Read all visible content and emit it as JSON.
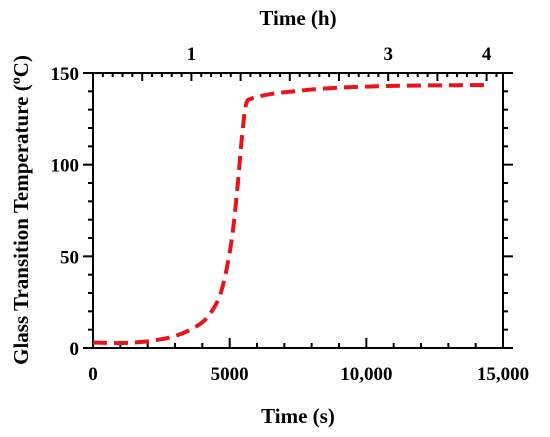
{
  "chart_data": {
    "type": "line",
    "xlabel": "Time (s)",
    "x2label": "Time (h)",
    "ylabel_main": "Glass Transition Temperature (",
    "ylabel_sup": "o",
    "ylabel_end": "C)",
    "xlim": [
      0,
      15000
    ],
    "ylim": [
      0,
      150
    ],
    "x_ticks": [
      {
        "value": 0,
        "label": "0"
      },
      {
        "value": 5000,
        "label": "5000"
      },
      {
        "value": 10000,
        "label": "10,000"
      },
      {
        "value": 15000,
        "label": "15,000"
      }
    ],
    "x_minor_step": 1000,
    "x2_ticks": [
      {
        "value": 1,
        "label": "1"
      },
      {
        "value": 3,
        "label": "3"
      },
      {
        "value": 4,
        "label": "4"
      }
    ],
    "x2_hours_per_second": 0.000277778,
    "x2_minor_step_hours": 0.1,
    "x2_major_step_hours": 0.5,
    "y_ticks": [
      {
        "value": 0,
        "label": "0"
      },
      {
        "value": 50,
        "label": "50"
      },
      {
        "value": 100,
        "label": "100"
      },
      {
        "value": 150,
        "label": "150"
      }
    ],
    "y_minor_step": 10,
    "grid": false,
    "series": [
      {
        "color": "#e8141b",
        "style": "dashed",
        "x": [
          0,
          500,
          1000,
          1500,
          2000,
          2500,
          3000,
          3500,
          4000,
          4300,
          4600,
          4800,
          5000,
          5150,
          5300,
          5450,
          5600,
          5800,
          6000,
          6500,
          7000,
          7500,
          8000,
          9000,
          10000,
          11000,
          12000,
          13000,
          14000,
          14500
        ],
        "y": [
          3,
          2.8,
          2.7,
          3,
          3.6,
          4.8,
          6.5,
          9.5,
          14,
          19,
          27,
          37,
          52,
          68,
          90,
          115,
          133,
          136,
          137,
          138.5,
          139.5,
          140.2,
          141,
          142,
          142.6,
          143,
          143.2,
          143.3,
          143.4,
          143.4
        ]
      }
    ]
  }
}
